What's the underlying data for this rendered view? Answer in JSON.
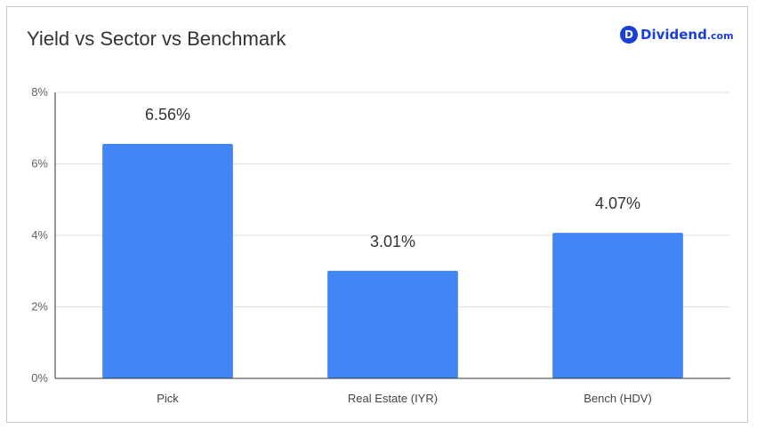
{
  "title": "Yield vs Sector vs Benchmark",
  "brand": {
    "name": "Dividend",
    "tld": ".com",
    "logo_letter": "D",
    "color": "#1a3fd6"
  },
  "chart_data": {
    "type": "bar",
    "title": "Yield vs Sector vs Benchmark",
    "categories": [
      "Pick",
      "Real Estate (IYR)",
      "Bench (HDV)"
    ],
    "values": [
      6.56,
      3.01,
      4.07
    ],
    "data_labels": [
      "6.56%",
      "3.01%",
      "4.07%"
    ],
    "y_ticks": [
      0,
      2,
      4,
      6,
      8
    ],
    "y_tick_labels": [
      "0%",
      "2%",
      "4%",
      "6%",
      "8%"
    ],
    "ylim": [
      0,
      8
    ],
    "xlabel": "",
    "ylabel": "",
    "grid": true,
    "legend": "none",
    "bar_color": "#4285f4"
  }
}
